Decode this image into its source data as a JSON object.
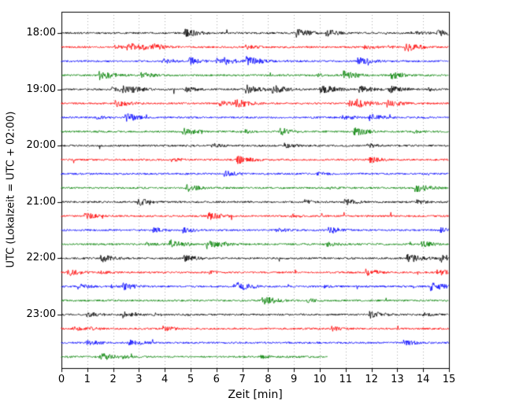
{
  "chart_data": {
    "type": "line",
    "subtype": "seismogram-drum-plot",
    "title": "",
    "xlabel": "Zeit  [min]",
    "ylabel": "UTC (Lokalzeit = UTC + 02:00)",
    "xlim": [
      0,
      15
    ],
    "x_ticks": [
      0,
      1,
      2,
      3,
      4,
      5,
      6,
      7,
      8,
      9,
      10,
      11,
      12,
      13,
      14,
      15
    ],
    "grid": "vertical dotted gridlines at every minute",
    "legend": "none",
    "trace_colors": [
      "#000000",
      "#ff0000",
      "#0000ff",
      "#008000"
    ],
    "hour_rows": [
      {
        "label": "18:00",
        "row_index": 0
      },
      {
        "label": "19:00",
        "row_index": 4
      },
      {
        "label": "20:00",
        "row_index": 8
      },
      {
        "label": "21:00",
        "row_index": 12
      },
      {
        "label": "22:00",
        "row_index": 16
      },
      {
        "label": "23:00",
        "row_index": 20
      }
    ],
    "traces": [
      {
        "start_utc": "18:00",
        "color": "#000000",
        "duration_min": 15
      },
      {
        "start_utc": "18:15",
        "color": "#ff0000",
        "duration_min": 15
      },
      {
        "start_utc": "18:30",
        "color": "#0000ff",
        "duration_min": 15
      },
      {
        "start_utc": "18:45",
        "color": "#008000",
        "duration_min": 15
      },
      {
        "start_utc": "19:00",
        "color": "#000000",
        "duration_min": 15
      },
      {
        "start_utc": "19:15",
        "color": "#ff0000",
        "duration_min": 15
      },
      {
        "start_utc": "19:30",
        "color": "#0000ff",
        "duration_min": 15
      },
      {
        "start_utc": "19:45",
        "color": "#008000",
        "duration_min": 15
      },
      {
        "start_utc": "20:00",
        "color": "#000000",
        "duration_min": 15
      },
      {
        "start_utc": "20:15",
        "color": "#ff0000",
        "duration_min": 15
      },
      {
        "start_utc": "20:30",
        "color": "#0000ff",
        "duration_min": 15
      },
      {
        "start_utc": "20:45",
        "color": "#008000",
        "duration_min": 15
      },
      {
        "start_utc": "21:00",
        "color": "#000000",
        "duration_min": 15
      },
      {
        "start_utc": "21:15",
        "color": "#ff0000",
        "duration_min": 15
      },
      {
        "start_utc": "21:30",
        "color": "#0000ff",
        "duration_min": 15
      },
      {
        "start_utc": "21:45",
        "color": "#008000",
        "duration_min": 15
      },
      {
        "start_utc": "22:00",
        "color": "#000000",
        "duration_min": 15
      },
      {
        "start_utc": "22:15",
        "color": "#ff0000",
        "duration_min": 15
      },
      {
        "start_utc": "22:30",
        "color": "#0000ff",
        "duration_min": 15
      },
      {
        "start_utc": "22:45",
        "color": "#008000",
        "duration_min": 15
      },
      {
        "start_utc": "23:00",
        "color": "#000000",
        "duration_min": 15
      },
      {
        "start_utc": "23:15",
        "color": "#ff0000",
        "duration_min": 15
      },
      {
        "start_utc": "23:30",
        "color": "#0000ff",
        "duration_min": 15
      },
      {
        "start_utc": "23:45",
        "color": "#008000",
        "duration_min": 10.3
      }
    ],
    "description": "Continuous seismic noise traces; 4 lines per hour (15 min each), colors cycling black/red/blue/green; last trace ends early at about 10.3 min."
  },
  "colors": {
    "background": "#ffffff",
    "grid": "#999999",
    "axis": "#000000"
  }
}
